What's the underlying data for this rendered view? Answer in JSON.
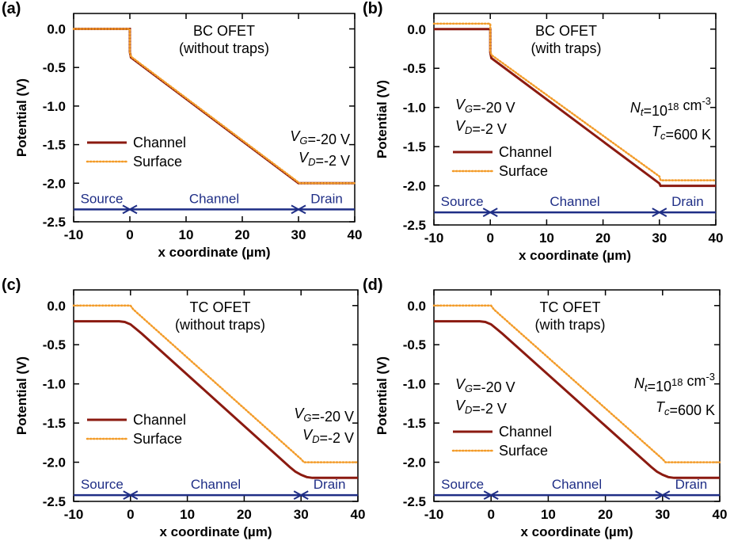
{
  "figure": {
    "title": ""
  },
  "colors": {
    "channel": "#8B1A10",
    "surface": "#F39C2A",
    "arrow": "#1F2E86",
    "text": "#000000"
  },
  "chart_data": [
    {
      "type": "line",
      "panel": "(a)",
      "title": "BC OFET",
      "subtitle": "(without traps)",
      "xlabel": "x coordinate (µm)",
      "ylabel": "Potential (V)",
      "xlim": [
        -10,
        40
      ],
      "ylim": [
        -2.5,
        0.2
      ],
      "xticks": [
        "-10",
        "0",
        "10",
        "20",
        "30",
        "40"
      ],
      "yticks": [
        "0.0",
        "-0.5",
        "-1.0",
        "-1.5",
        "-2.0",
        "-2.5"
      ],
      "legend": "lower-left",
      "bias": [
        "V_G=-20 V",
        "V_D=-2 V"
      ],
      "bias_position": "right",
      "traps": null,
      "regions": [
        "Source",
        "Channel",
        "Drain"
      ],
      "series": [
        {
          "name": "Channel",
          "style": "solid",
          "x": [
            -10,
            0,
            0,
            0.2,
            30,
            30.2,
            40
          ],
          "y": [
            0.0,
            0.0,
            -0.3,
            -0.37,
            -2.0,
            -2.0,
            -2.0
          ]
        },
        {
          "name": "Surface",
          "style": "dotted",
          "x": [
            -10,
            0,
            0,
            0.2,
            30,
            30.2,
            40
          ],
          "y": [
            0.0,
            0.0,
            -0.3,
            -0.36,
            -1.99,
            -2.0,
            -2.0
          ]
        }
      ]
    },
    {
      "type": "line",
      "panel": "(b)",
      "title": "BC OFET",
      "subtitle": "(with traps)",
      "xlabel": "x coordinate (µm)",
      "ylabel": "Potential (V)",
      "xlim": [
        -10,
        40
      ],
      "ylim": [
        -2.5,
        0.2
      ],
      "xticks": [
        "-10",
        "0",
        "10",
        "20",
        "30",
        "40"
      ],
      "yticks": [
        "0.0",
        "-0.5",
        "-1.0",
        "-1.5",
        "-2.0",
        "-2.5"
      ],
      "legend": "lower-left",
      "bias": [
        "V_G=-20 V",
        "V_D=-2 V"
      ],
      "bias_position": "left",
      "traps": [
        "N_t=10^18 cm^-3",
        "T_c=600 K"
      ],
      "regions": [
        "Source",
        "Channel",
        "Drain"
      ],
      "series": [
        {
          "name": "Channel",
          "style": "solid",
          "x": [
            -10,
            0,
            0,
            0.2,
            30,
            30.2,
            40
          ],
          "y": [
            0.0,
            0.0,
            -0.3,
            -0.37,
            -1.97,
            -2.0,
            -2.0
          ]
        },
        {
          "name": "Surface",
          "style": "dotted",
          "x": [
            -10,
            0,
            0,
            0.2,
            30,
            30.2,
            40
          ],
          "y": [
            0.07,
            0.07,
            -0.28,
            -0.33,
            -1.88,
            -1.93,
            -1.93
          ]
        }
      ]
    },
    {
      "type": "line",
      "panel": "(c)",
      "title": "TC OFET",
      "subtitle": "(without traps)",
      "xlabel": "x coordinate (µm)",
      "ylabel": "Potential (V)",
      "xlim": [
        -10,
        40
      ],
      "ylim": [
        -2.5,
        0.2
      ],
      "xticks": [
        "-10",
        "0",
        "10",
        "20",
        "30",
        "40"
      ],
      "yticks": [
        "0.0",
        "-0.5",
        "-1.0",
        "-1.5",
        "-2.0",
        "-2.5"
      ],
      "legend": "lower-left",
      "bias": [
        "V_G=-20 V",
        "V_D=-2 V"
      ],
      "bias_position": "right",
      "traps": null,
      "regions": [
        "Source",
        "Channel",
        "Drain"
      ],
      "series": [
        {
          "name": "Channel",
          "style": "solid",
          "x": [
            -10,
            -2,
            -1,
            0,
            1,
            2,
            28,
            29,
            30,
            31,
            32,
            40
          ],
          "y": [
            -0.2,
            -0.2,
            -0.21,
            -0.24,
            -0.3,
            -0.36,
            -2.06,
            -2.12,
            -2.16,
            -2.19,
            -2.2,
            -2.2
          ]
        },
        {
          "name": "Surface",
          "style": "dotted",
          "x": [
            -10,
            0,
            0.5,
            30,
            30.5,
            40
          ],
          "y": [
            0.0,
            0.0,
            -0.05,
            -1.96,
            -2.0,
            -2.0
          ]
        }
      ]
    },
    {
      "type": "line",
      "panel": "(d)",
      "title": "TC OFET",
      "subtitle": "(with traps)",
      "xlabel": "x coordinate (µm)",
      "ylabel": "Potential (V)",
      "xlim": [
        -10,
        40
      ],
      "ylim": [
        -2.5,
        0.2
      ],
      "xticks": [
        "-10",
        "0",
        "10",
        "20",
        "30",
        "40"
      ],
      "yticks": [
        "0.0",
        "-0.5",
        "-1.0",
        "-1.5",
        "-2.0",
        "-2.5"
      ],
      "legend": "lower-left",
      "bias": [
        "V_G=-20 V",
        "V_D=-2 V"
      ],
      "bias_position": "left",
      "traps": [
        "N_t=10^18 cm^-3",
        "T_c=600 K"
      ],
      "regions": [
        "Source",
        "Channel",
        "Drain"
      ],
      "series": [
        {
          "name": "Channel",
          "style": "solid",
          "x": [
            -10,
            -2,
            -1,
            0,
            1,
            2,
            28,
            29,
            30,
            31,
            32,
            40
          ],
          "y": [
            -0.2,
            -0.2,
            -0.21,
            -0.24,
            -0.3,
            -0.36,
            -2.06,
            -2.12,
            -2.16,
            -2.19,
            -2.2,
            -2.2
          ]
        },
        {
          "name": "Surface",
          "style": "dotted",
          "x": [
            -10,
            0,
            0.5,
            30,
            30.5,
            40
          ],
          "y": [
            0.0,
            0.0,
            -0.05,
            -1.96,
            -2.0,
            -2.0
          ]
        }
      ]
    }
  ]
}
